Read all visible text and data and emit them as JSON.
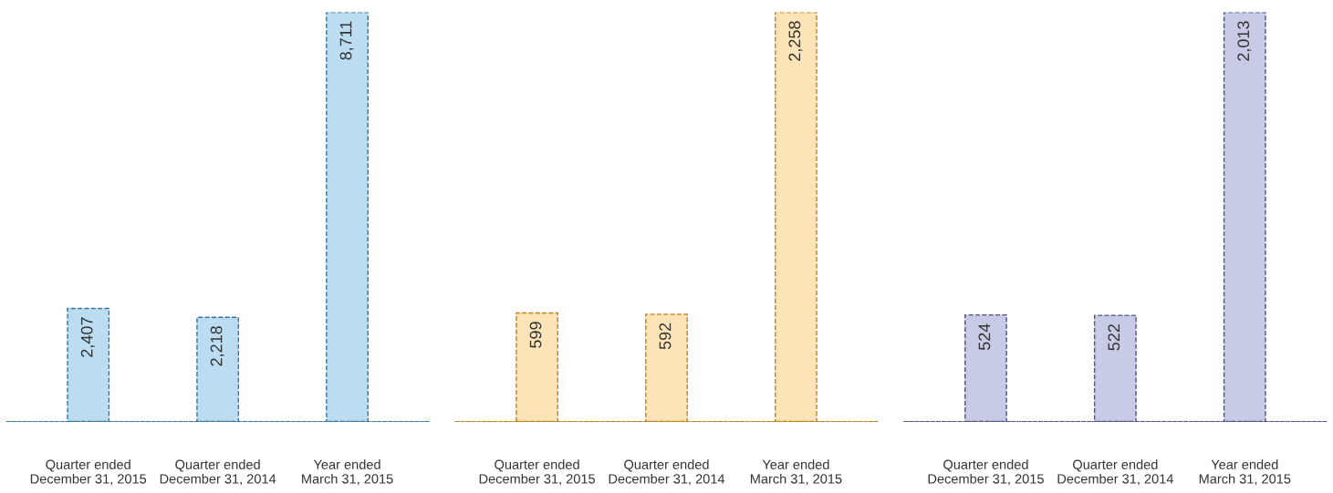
{
  "chart_data": [
    {
      "type": "bar",
      "categories": [
        "Quarter ended\nDecember 31, 2015",
        "Quarter ended\nDecember 31, 2014",
        "Year ended\nMarch 31, 2015"
      ],
      "values": [
        2407,
        2218,
        8711
      ],
      "value_labels": [
        "2,407",
        "2,218",
        "8,711"
      ],
      "color": "#bcdcf2"
    },
    {
      "type": "bar",
      "categories": [
        "Quarter ended\nDecember 31, 2015",
        "Quarter ended\nDecember 31, 2014",
        "Year ended\nMarch 31, 2015"
      ],
      "values": [
        599,
        592,
        2258
      ],
      "value_labels": [
        "599",
        "592",
        "2,258"
      ],
      "color": "#fde3b8"
    },
    {
      "type": "bar",
      "categories": [
        "Quarter ended\nDecember 31, 2015",
        "Quarter ended\nDecember 31, 2014",
        "Year ended\nMarch 31, 2015"
      ],
      "values": [
        524,
        522,
        2013
      ],
      "value_labels": [
        "524",
        "522",
        "2,013"
      ],
      "color": "#c8cbe6"
    }
  ]
}
